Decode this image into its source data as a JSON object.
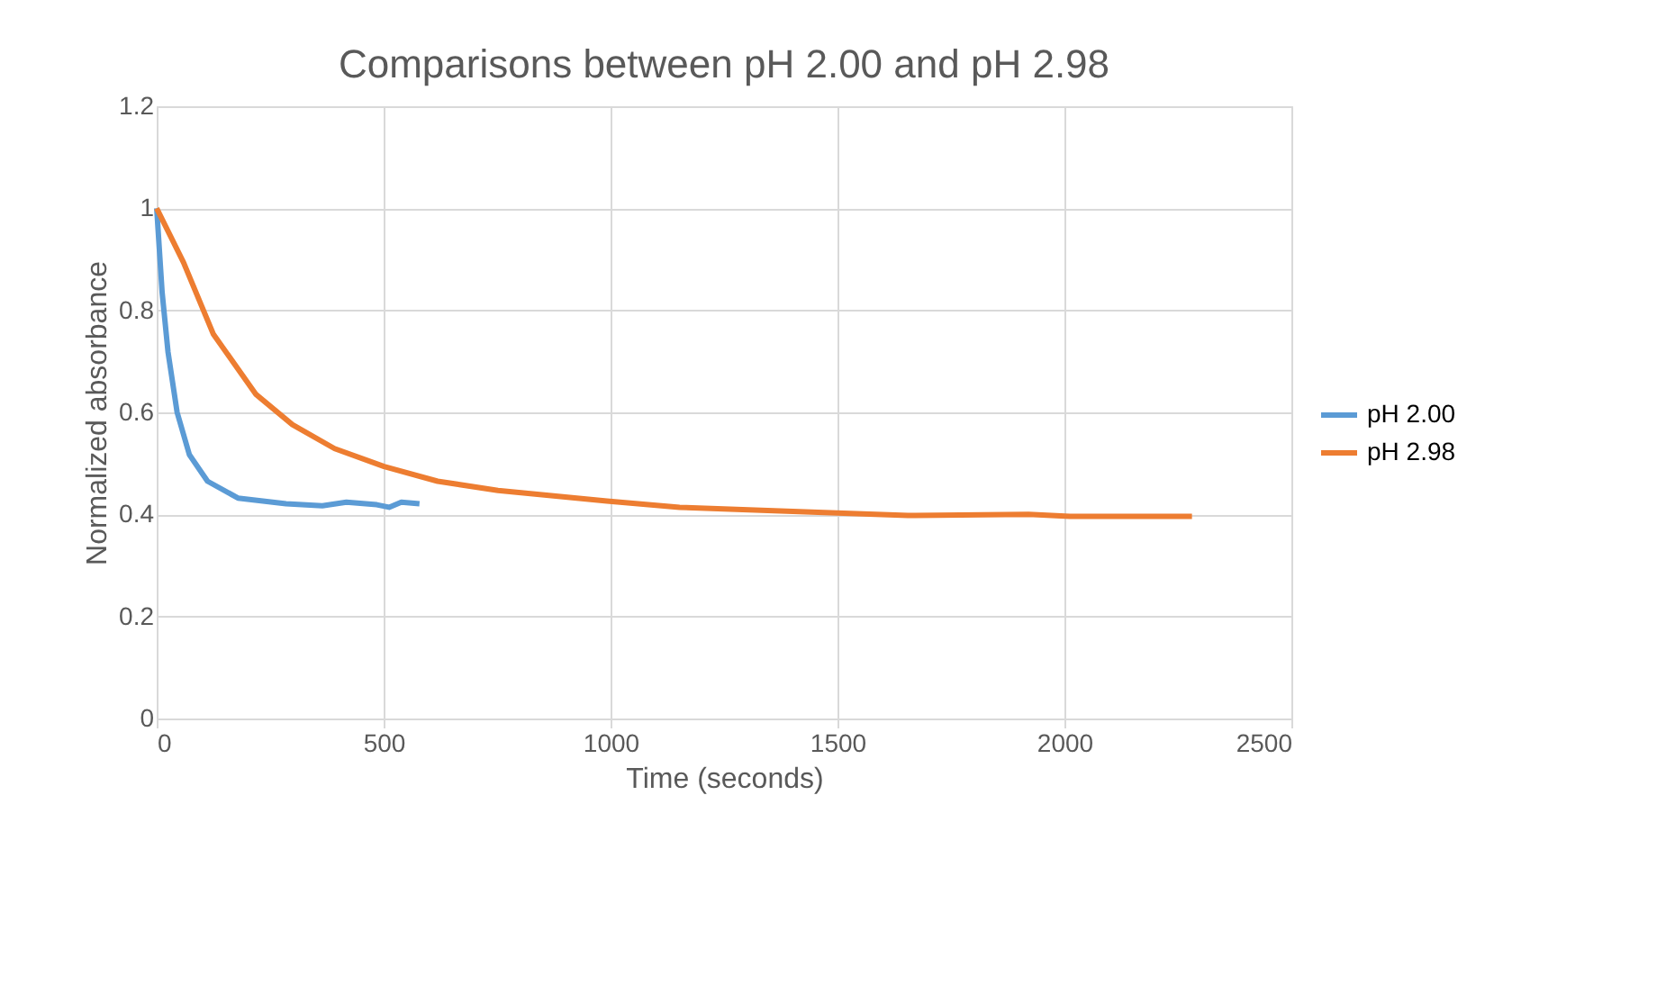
{
  "chart_data": {
    "type": "line",
    "title": "Comparisons between pH 2.00 and pH 2.98",
    "xlabel": "Time (seconds)",
    "ylabel": "Normalized absorbance",
    "xlim": [
      0,
      2500
    ],
    "xticks": [
      0,
      500,
      1000,
      1500,
      2000,
      2500
    ],
    "ylim": [
      0,
      1.2
    ],
    "yticks": [
      0,
      0.2,
      0.4,
      0.6,
      0.8,
      1,
      1.2
    ],
    "grid": true,
    "legend": "right",
    "marker": "none",
    "line_style": "solid",
    "series": [
      {
        "name": "pH 2.00",
        "color": "#5b9bd5",
        "x": [
          0,
          12,
          25,
          45,
          72,
          112,
          179,
          285,
          365,
          418,
          485,
          512,
          539,
          579
        ],
        "values": [
          1.0,
          0.835,
          0.718,
          0.6,
          0.517,
          0.465,
          0.432,
          0.421,
          0.417,
          0.424,
          0.419,
          0.414,
          0.424,
          0.421
        ]
      },
      {
        "name": "pH 2.98",
        "color": "#ed7d31",
        "x": [
          0,
          59,
          125,
          219,
          299,
          392,
          501,
          619,
          752,
          992,
          1152,
          1457,
          1655,
          1921,
          2012,
          2281
        ],
        "values": [
          1.0,
          0.894,
          0.753,
          0.635,
          0.576,
          0.529,
          0.494,
          0.465,
          0.447,
          0.426,
          0.414,
          0.404,
          0.398,
          0.4,
          0.396,
          0.396
        ]
      }
    ]
  }
}
